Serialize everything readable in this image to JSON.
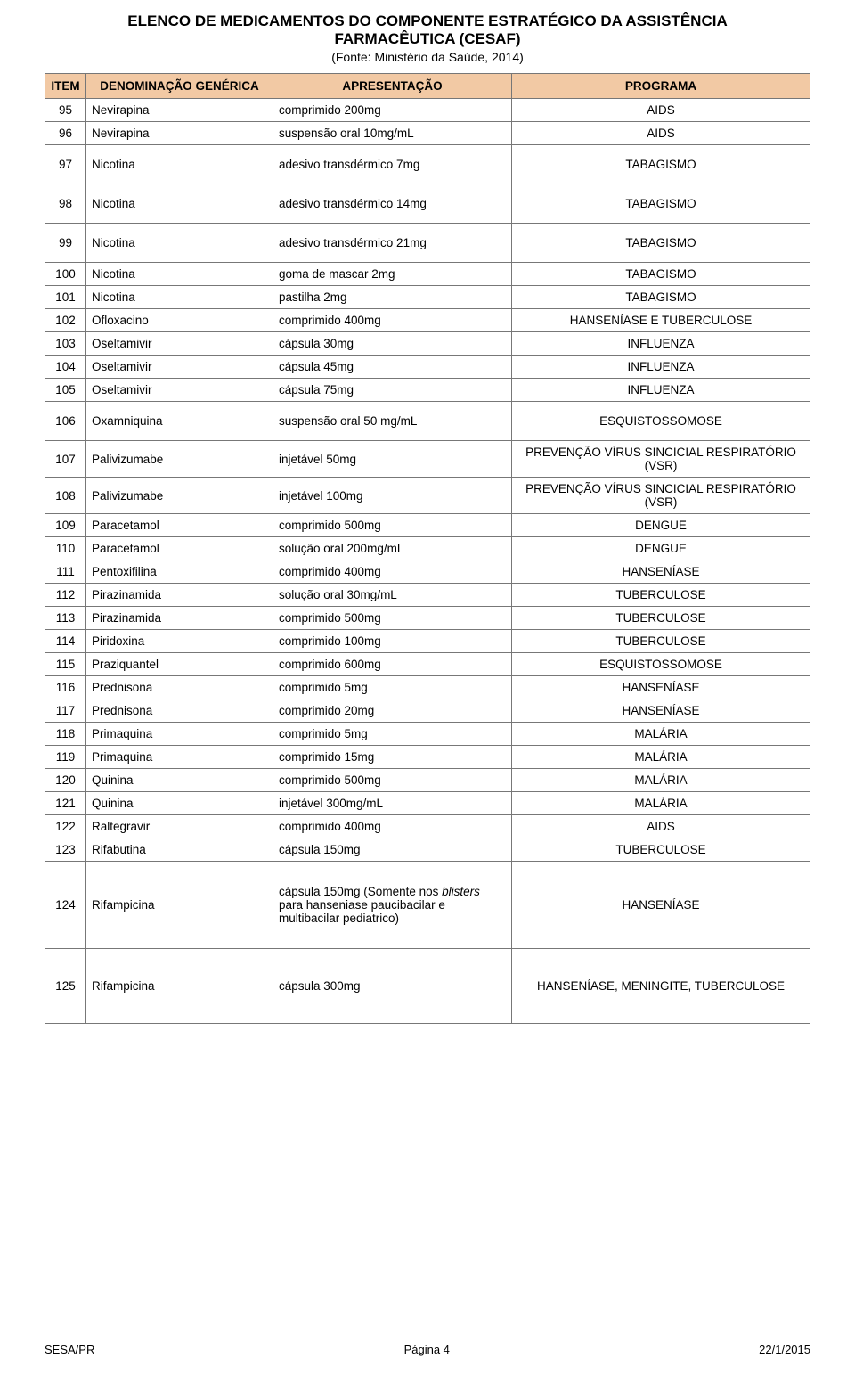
{
  "header": {
    "title_line1": "ELENCO DE MEDICAMENTOS DO COMPONENTE ESTRATÉGICO DA ASSISTÊNCIA",
    "title_line2": "FARMACÊUTICA (CESAF)",
    "subtitle": "(Fonte: Ministério da Saúde, 2014)"
  },
  "table": {
    "columns": [
      "ITEM",
      "DENOMINAÇÃO GENÉRICA",
      "APRESENTAÇÃO",
      "PROGRAMA"
    ],
    "header_bg": "#f2c9a4",
    "border_color": "#777777",
    "rows": [
      {
        "item": "95",
        "name": "Nevirapina",
        "pres": "comprimido 200mg",
        "prog": "AIDS",
        "row_class": ""
      },
      {
        "item": "96",
        "name": "Nevirapina",
        "pres": "suspensão oral 10mg/mL",
        "prog": "AIDS",
        "row_class": ""
      },
      {
        "item": "97",
        "name": "Nicotina",
        "pres": "adesivo transdérmico 7mg",
        "prog": "TABAGISMO",
        "row_class": "tall"
      },
      {
        "item": "98",
        "name": "Nicotina",
        "pres": "adesivo transdérmico 14mg",
        "prog": "TABAGISMO",
        "row_class": "tall"
      },
      {
        "item": "99",
        "name": "Nicotina",
        "pres": "adesivo transdérmico 21mg",
        "prog": "TABAGISMO",
        "row_class": "tall"
      },
      {
        "item": "100",
        "name": "Nicotina",
        "pres": "goma de mascar 2mg",
        "prog": "TABAGISMO",
        "row_class": ""
      },
      {
        "item": "101",
        "name": "Nicotina",
        "pres": "pastilha 2mg",
        "prog": "TABAGISMO",
        "row_class": ""
      },
      {
        "item": "102",
        "name": "Ofloxacino",
        "pres": "comprimido 400mg",
        "prog": "HANSENÍASE E TUBERCULOSE",
        "row_class": ""
      },
      {
        "item": "103",
        "name": "Oseltamivir",
        "pres": "cápsula 30mg",
        "prog": "INFLUENZA",
        "row_class": ""
      },
      {
        "item": "104",
        "name": "Oseltamivir",
        "pres": "cápsula 45mg",
        "prog": "INFLUENZA",
        "row_class": ""
      },
      {
        "item": "105",
        "name": "Oseltamivir",
        "pres": "cápsula 75mg",
        "prog": "INFLUENZA",
        "row_class": ""
      },
      {
        "item": "106",
        "name": "Oxamniquina",
        "pres": "suspensão oral 50 mg/mL",
        "prog": "ESQUISTOSSOMOSE",
        "row_class": "tall"
      },
      {
        "item": "107",
        "name": "Palivizumabe",
        "pres": "injetável 50mg",
        "prog": "PREVENÇÃO VÍRUS SINCICIAL RESPIRATÓRIO (VSR)",
        "row_class": ""
      },
      {
        "item": "108",
        "name": "Palivizumabe",
        "pres": "injetável 100mg",
        "prog": "PREVENÇÃO VÍRUS SINCICIAL RESPIRATÓRIO (VSR)",
        "row_class": ""
      },
      {
        "item": "109",
        "name": "Paracetamol",
        "pres": "comprimido 500mg",
        "prog": "DENGUE",
        "row_class": ""
      },
      {
        "item": "110",
        "name": "Paracetamol",
        "pres": "solução oral 200mg/mL",
        "prog": "DENGUE",
        "row_class": ""
      },
      {
        "item": "111",
        "name": "Pentoxifilina",
        "pres": "comprimido 400mg",
        "prog": "HANSENÍASE",
        "row_class": ""
      },
      {
        "item": "112",
        "name": "Pirazinamida",
        "pres": "solução oral 30mg/mL",
        "prog": "TUBERCULOSE",
        "row_class": ""
      },
      {
        "item": "113",
        "name": "Pirazinamida",
        "pres": "comprimido 500mg",
        "prog": "TUBERCULOSE",
        "row_class": ""
      },
      {
        "item": "114",
        "name": "Piridoxina",
        "pres": "comprimido 100mg",
        "prog": "TUBERCULOSE",
        "row_class": ""
      },
      {
        "item": "115",
        "name": "Praziquantel",
        "pres": "comprimido 600mg",
        "prog": "ESQUISTOSSOMOSE",
        "row_class": ""
      },
      {
        "item": "116",
        "name": "Prednisona",
        "pres": "comprimido 5mg",
        "prog": "HANSENÍASE",
        "row_class": ""
      },
      {
        "item": "117",
        "name": "Prednisona",
        "pres": "comprimido 20mg",
        "prog": "HANSENÍASE",
        "row_class": ""
      },
      {
        "item": "118",
        "name": "Primaquina",
        "pres": "comprimido 5mg",
        "prog": "MALÁRIA",
        "row_class": ""
      },
      {
        "item": "119",
        "name": "Primaquina",
        "pres": "comprimido 15mg",
        "prog": "MALÁRIA",
        "row_class": ""
      },
      {
        "item": "120",
        "name": "Quinina",
        "pres": "comprimido 500mg",
        "prog": "MALÁRIA",
        "row_class": ""
      },
      {
        "item": "121",
        "name": "Quinina",
        "pres": "injetável 300mg/mL",
        "prog": "MALÁRIA",
        "row_class": ""
      },
      {
        "item": "122",
        "name": "Raltegravir",
        "pres": "comprimido 400mg",
        "prog": "AIDS",
        "row_class": ""
      },
      {
        "item": "123",
        "name": "Rifabutina",
        "pres": "cápsula 150mg",
        "prog": "TUBERCULOSE",
        "row_class": ""
      },
      {
        "item": "124",
        "name": "Rifampicina",
        "pres_html": "cápsula 150mg (Somente nos <span class=\"italic\">blisters</span> para hanseniase paucibacilar e multibacilar pediatrico)",
        "prog": "HANSENÍASE",
        "row_class": "xtall"
      },
      {
        "item": "125",
        "name": "Rifampicina",
        "pres": "cápsula 300mg",
        "prog": "HANSENÍASE, MENINGITE, TUBERCULOSE",
        "row_class": "xxtall"
      }
    ]
  },
  "footer": {
    "left": "SESA/PR",
    "center": "Página 4",
    "right": "22/1/2015"
  }
}
